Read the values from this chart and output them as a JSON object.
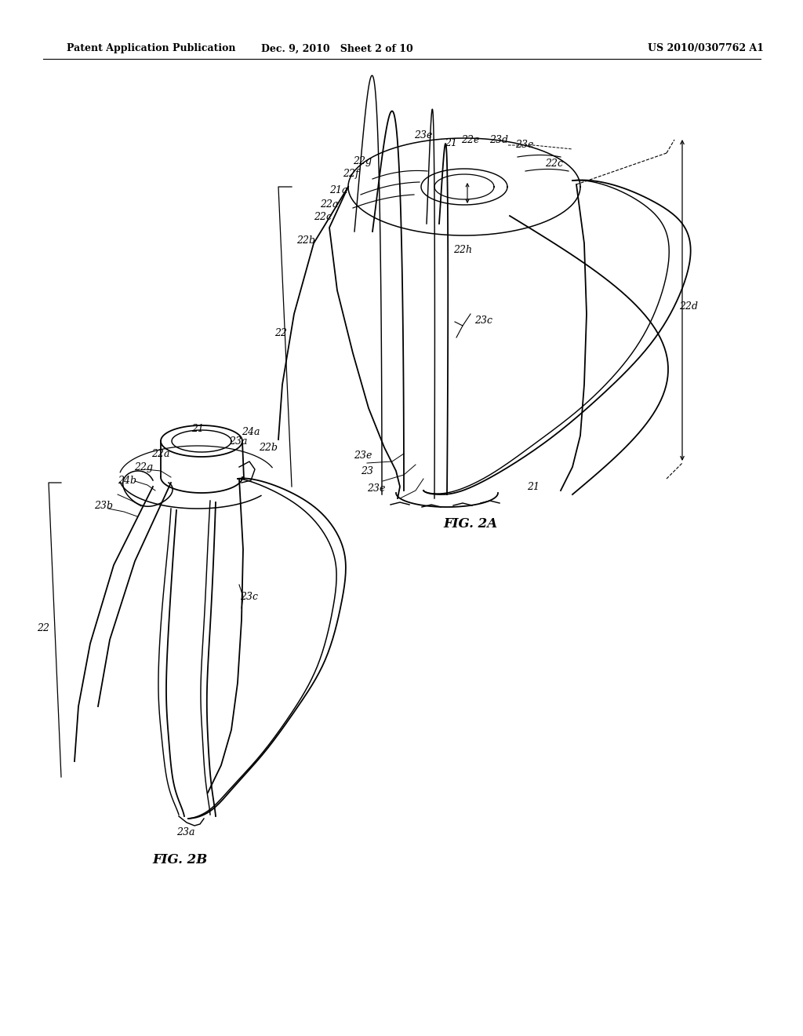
{
  "bg_color": "#ffffff",
  "header": {
    "left": "Patent Application Publication",
    "center": "Dec. 9, 2010   Sheet 2 of 10",
    "right": "US 2010/0307762 A1"
  },
  "fig2a_label": "FIG. 2A",
  "fig2b_label": "FIG. 2B",
  "line_color": "#000000",
  "line_width": 1.3,
  "annotation_fontsize": 9,
  "header_fontsize": 9
}
